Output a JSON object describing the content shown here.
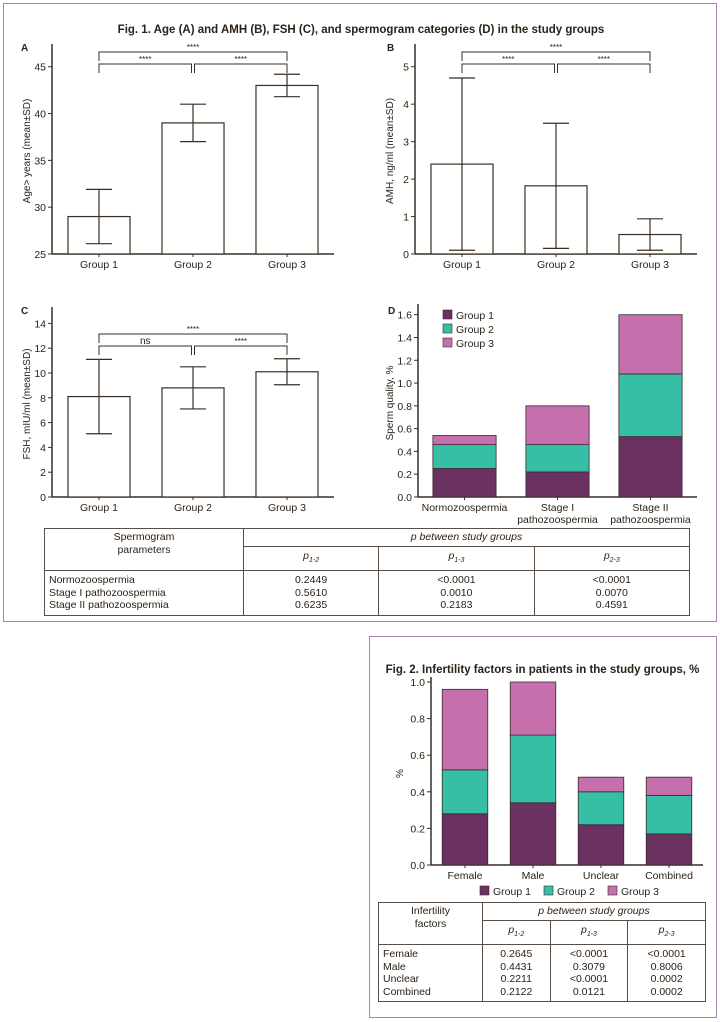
{
  "fig1": {
    "title": "Fig. 1. Age (A) and AMH (B), FSH (C), and spermogram categories (D) in the study groups"
  },
  "fig2": {
    "title": "Fig. 2. Infertility factors in patients in the study groups, %"
  },
  "colors": {
    "group1": "#6b3161",
    "group2": "#37bfa5",
    "group3": "#c56fad",
    "axis": "#3a2e22",
    "frame": "#a585ad"
  },
  "chart_data": [
    {
      "id": "A",
      "type": "bar",
      "panel_label": "A",
      "categories": [
        "Group 1",
        "Group 2",
        "Group 3"
      ],
      "values": [
        29.0,
        39.0,
        43.0
      ],
      "error_sd": [
        2.9,
        2.0,
        1.2
      ],
      "ylabel": "Age> years (mean±SD)",
      "ylim": [
        25,
        47
      ],
      "yticks": [
        "25",
        "30",
        "35",
        "40",
        "45"
      ],
      "significance": [
        {
          "from": 0,
          "to": 1,
          "label": "****"
        },
        {
          "from": 1,
          "to": 2,
          "label": "****"
        },
        {
          "from": 0,
          "to": 2,
          "label": "****"
        }
      ]
    },
    {
      "id": "B",
      "type": "bar",
      "panel_label": "B",
      "categories": [
        "Group 1",
        "Group 2",
        "Group 3"
      ],
      "values": [
        2.4,
        1.82,
        0.52
      ],
      "error_sd": [
        2.3,
        1.67,
        0.42
      ],
      "ylabel": "AMH, ng/ml (mean±SD)",
      "ylim": [
        0,
        5.5
      ],
      "yticks": [
        "0",
        "1",
        "2",
        "3",
        "4",
        "5"
      ],
      "significance": [
        {
          "from": 0,
          "to": 1,
          "label": "****"
        },
        {
          "from": 1,
          "to": 2,
          "label": "****"
        },
        {
          "from": 0,
          "to": 2,
          "label": "****"
        }
      ]
    },
    {
      "id": "C",
      "type": "bar",
      "panel_label": "C",
      "categories": [
        "Group 1",
        "Group 2",
        "Group 3"
      ],
      "values": [
        8.1,
        8.8,
        10.1
      ],
      "error_sd": [
        3.0,
        1.7,
        1.05
      ],
      "ylabel": "FSH, mIU/ml (mean±SD)",
      "ylim": [
        0,
        15
      ],
      "yticks": [
        "0",
        "2",
        "4",
        "6",
        "8",
        "10",
        "12",
        "14"
      ],
      "significance": [
        {
          "from": 0,
          "to": 1,
          "label": "ns"
        },
        {
          "from": 1,
          "to": 2,
          "label": "****"
        },
        {
          "from": 0,
          "to": 2,
          "label": "****"
        }
      ]
    },
    {
      "id": "D",
      "type": "bar",
      "stacked": true,
      "panel_label": "D",
      "categories": [
        "Normozoospermia",
        "Stage I|pathozoospermia",
        "Stage II|pathozoospermia"
      ],
      "series": [
        {
          "name": "Group 1",
          "values": [
            0.25,
            0.22,
            0.53
          ]
        },
        {
          "name": "Group 2",
          "values": [
            0.21,
            0.24,
            0.55
          ]
        },
        {
          "name": "Group 3",
          "values": [
            0.08,
            0.34,
            0.52
          ]
        }
      ],
      "ylabel": "Sperm quality, %",
      "ylim": [
        0,
        1.65
      ],
      "yticks": [
        "0.0",
        "0.2",
        "0.4",
        "0.6",
        "0.8",
        "1.0",
        "1.2",
        "1.4",
        "1.6"
      ],
      "legend": "top-left"
    },
    {
      "id": "F2",
      "type": "bar",
      "stacked": true,
      "title": "Fig. 2. Infertility factors in patients in the study groups, %",
      "categories": [
        "Female",
        "Male",
        "Unclear",
        "Combined"
      ],
      "series": [
        {
          "name": "Group 1",
          "values": [
            0.28,
            0.34,
            0.22,
            0.17
          ]
        },
        {
          "name": "Group 2",
          "values": [
            0.24,
            0.37,
            0.18,
            0.21
          ]
        },
        {
          "name": "Group 3",
          "values": [
            0.44,
            0.29,
            0.08,
            0.1
          ]
        }
      ],
      "ylabel": "%",
      "ylim": [
        0,
        1.0
      ],
      "yticks": [
        "0.0",
        "0.2",
        "0.4",
        "0.6",
        "0.8",
        "1.0"
      ],
      "legend": "bottom"
    }
  ],
  "table1": {
    "header_param": [
      "Spermogram",
      "parameters"
    ],
    "header_p": "p between study groups",
    "subheaders": [
      {
        "p": "p",
        "sub": "1-2"
      },
      {
        "p": "p",
        "sub": "1-3"
      },
      {
        "p": "p",
        "sub": "2-3"
      }
    ],
    "rows": [
      {
        "label": "Normozoospermia",
        "values": [
          "0.2449",
          "<0.0001",
          "<0.0001"
        ]
      },
      {
        "label": "Stage I pathozoospermia",
        "values": [
          "0.5610",
          "0.0010",
          "0.0070"
        ]
      },
      {
        "label": "Stage II pathozoospermia",
        "values": [
          "0.6235",
          "0.2183",
          "0.4591"
        ]
      }
    ]
  },
  "table2": {
    "header_param": [
      "Infertility",
      "factors"
    ],
    "header_p": "p between study groups",
    "subheaders": [
      {
        "p": "p",
        "sub": "1-2"
      },
      {
        "p": "p",
        "sub": "1-3"
      },
      {
        "p": "p",
        "sub": "2-3"
      }
    ],
    "rows": [
      {
        "label": "Female",
        "values": [
          "0.2645",
          "<0.0001",
          "<0.0001"
        ]
      },
      {
        "label": "Male",
        "values": [
          "0.4431",
          "0.3079",
          "0.8006"
        ]
      },
      {
        "label": "Unclear",
        "values": [
          "0.2211",
          "<0.0001",
          "0.0002"
        ]
      },
      {
        "label": "Combined",
        "values": [
          "0.2122",
          "0.0121",
          "0.0002"
        ]
      }
    ]
  }
}
